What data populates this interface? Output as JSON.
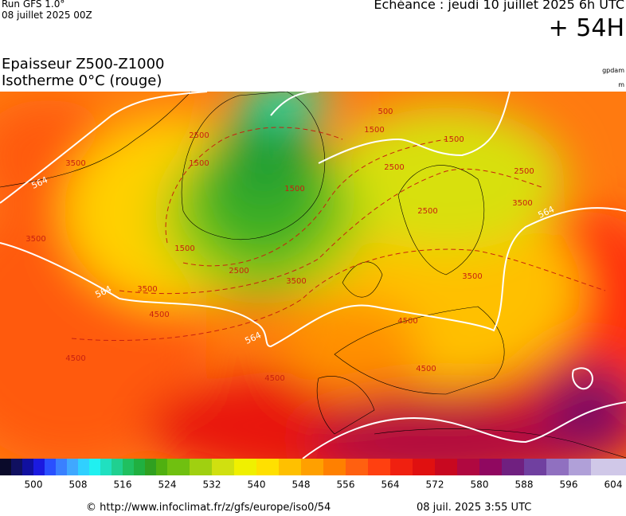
{
  "header": {
    "run": "Run GFS 1.0°",
    "run_date": "08 juillet 2025 00Z",
    "echeance": "Echéance : jeudi 10 juillet 2025 6h UTC",
    "lead": "+ 54H",
    "title_line1": "Epaisseur Z500-Z1000",
    "title_line2": "Isotherme 0°C (rouge)",
    "unit_top": "gpdam",
    "unit_bottom": "m"
  },
  "map_labels": {
    "thickness": [
      "564",
      "564",
      "564",
      "564"
    ],
    "isotherm": [
      "1500",
      "2500",
      "3500",
      "1500",
      "1500",
      "2500",
      "3500",
      "3500",
      "4500",
      "4500",
      "500",
      "1500",
      "1500",
      "2500",
      "2500",
      "2500",
      "3500",
      "3500",
      "3500",
      "4500",
      "4500",
      "4500"
    ]
  },
  "colorbar": {
    "ticks": [
      500,
      508,
      516,
      524,
      532,
      540,
      548,
      556,
      564,
      572,
      580,
      588,
      596,
      604
    ]
  },
  "footer": {
    "url": "© http://www.infoclimat.fr/z/gfs/europe/iso0/54",
    "timestamp": "08 juil. 2025  3:55 UTC"
  }
}
